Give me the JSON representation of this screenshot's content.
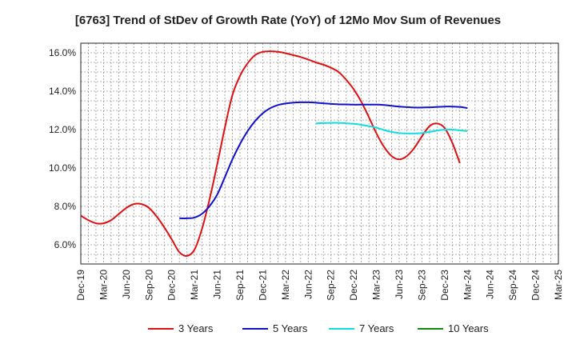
{
  "chart_data": {
    "type": "line",
    "title": "[6763]  Trend of StDev of Growth Rate (YoY) of 12Mo Mov Sum of Revenues",
    "xlabel": "",
    "ylabel": "",
    "ylim": [
      5.0,
      16.5
    ],
    "yticks": [
      6.0,
      8.0,
      10.0,
      12.0,
      14.0,
      16.0
    ],
    "ytick_labels": [
      "6.0%",
      "8.0%",
      "10.0%",
      "12.0%",
      "14.0%",
      "16.0%"
    ],
    "xtick_labels": [
      "Dec-19",
      "Mar-20",
      "Jun-20",
      "Sep-20",
      "Dec-20",
      "Mar-21",
      "Jun-21",
      "Sep-21",
      "Dec-21",
      "Mar-22",
      "Jun-22",
      "Sep-22",
      "Dec-22",
      "Mar-23",
      "Jun-23",
      "Sep-23",
      "Dec-23",
      "Mar-24",
      "Jun-24",
      "Sep-24",
      "Dec-24",
      "Mar-25"
    ],
    "grid": true,
    "legend_position": "bottom",
    "series": [
      {
        "name": "3 Years",
        "color": "#dd1111",
        "points": [
          [
            0,
            7.52
          ],
          [
            1,
            7.28
          ],
          [
            2,
            7.12
          ],
          [
            3,
            7.12
          ],
          [
            4,
            7.28
          ],
          [
            5,
            7.6
          ],
          [
            6,
            7.92
          ],
          [
            7,
            8.12
          ],
          [
            8,
            8.12
          ],
          [
            9,
            7.92
          ],
          [
            10,
            7.48
          ],
          [
            11,
            6.92
          ],
          [
            12,
            6.28
          ],
          [
            13,
            5.62
          ],
          [
            14,
            5.42
          ],
          [
            15,
            5.75
          ],
          [
            16,
            6.85
          ],
          [
            17,
            8.4
          ],
          [
            18,
            10.2
          ],
          [
            19,
            12.1
          ],
          [
            20,
            13.8
          ],
          [
            21,
            14.8
          ],
          [
            22,
            15.45
          ],
          [
            23,
            15.88
          ],
          [
            24,
            16.05
          ],
          [
            25,
            16.08
          ],
          [
            26,
            16.05
          ],
          [
            27,
            15.98
          ],
          [
            28,
            15.88
          ],
          [
            29,
            15.78
          ],
          [
            30,
            15.65
          ],
          [
            31,
            15.5
          ],
          [
            32,
            15.38
          ],
          [
            33,
            15.22
          ],
          [
            34,
            15.0
          ],
          [
            35,
            14.6
          ],
          [
            36,
            14.1
          ],
          [
            37,
            13.45
          ],
          [
            38,
            12.65
          ],
          [
            39,
            11.8
          ],
          [
            40,
            11.1
          ],
          [
            41,
            10.62
          ],
          [
            42,
            10.45
          ],
          [
            43,
            10.62
          ],
          [
            44,
            11.05
          ],
          [
            45,
            11.65
          ],
          [
            46,
            12.18
          ],
          [
            47,
            12.32
          ],
          [
            48,
            12.08
          ],
          [
            49,
            11.32
          ],
          [
            50,
            10.25
          ]
        ]
      },
      {
        "name": "5 Years",
        "color": "#1111cc",
        "points": [
          [
            13,
            7.38
          ],
          [
            14,
            7.38
          ],
          [
            15,
            7.42
          ],
          [
            16,
            7.62
          ],
          [
            17,
            8.02
          ],
          [
            18,
            8.62
          ],
          [
            19,
            9.52
          ],
          [
            20,
            10.45
          ],
          [
            21,
            11.25
          ],
          [
            22,
            11.92
          ],
          [
            23,
            12.45
          ],
          [
            24,
            12.85
          ],
          [
            25,
            13.12
          ],
          [
            26,
            13.28
          ],
          [
            27,
            13.36
          ],
          [
            28,
            13.4
          ],
          [
            29,
            13.42
          ],
          [
            30,
            13.42
          ],
          [
            31,
            13.4
          ],
          [
            32,
            13.37
          ],
          [
            33,
            13.34
          ],
          [
            34,
            13.32
          ],
          [
            35,
            13.31
          ],
          [
            36,
            13.3
          ],
          [
            37,
            13.3
          ],
          [
            38,
            13.3
          ],
          [
            39,
            13.3
          ],
          [
            40,
            13.28
          ],
          [
            41,
            13.24
          ],
          [
            42,
            13.2
          ],
          [
            43,
            13.17
          ],
          [
            44,
            13.15
          ],
          [
            45,
            13.15
          ],
          [
            46,
            13.16
          ],
          [
            47,
            13.18
          ],
          [
            48,
            13.2
          ],
          [
            49,
            13.2
          ],
          [
            50,
            13.18
          ],
          [
            51,
            13.12
          ]
        ]
      },
      {
        "name": "7 Years",
        "color": "#11dddd",
        "points": [
          [
            31,
            12.32
          ],
          [
            32,
            12.34
          ],
          [
            33,
            12.35
          ],
          [
            34,
            12.35
          ],
          [
            35,
            12.33
          ],
          [
            36,
            12.3
          ],
          [
            37,
            12.25
          ],
          [
            38,
            12.18
          ],
          [
            39,
            12.1
          ],
          [
            40,
            11.98
          ],
          [
            41,
            11.88
          ],
          [
            42,
            11.82
          ],
          [
            43,
            11.8
          ],
          [
            44,
            11.8
          ],
          [
            45,
            11.82
          ],
          [
            46,
            11.88
          ],
          [
            47,
            11.95
          ],
          [
            48,
            12.0
          ],
          [
            49,
            12.0
          ],
          [
            50,
            11.96
          ],
          [
            51,
            11.92
          ]
        ]
      },
      {
        "name": "10 Years",
        "color": "#118811",
        "points": []
      }
    ]
  }
}
